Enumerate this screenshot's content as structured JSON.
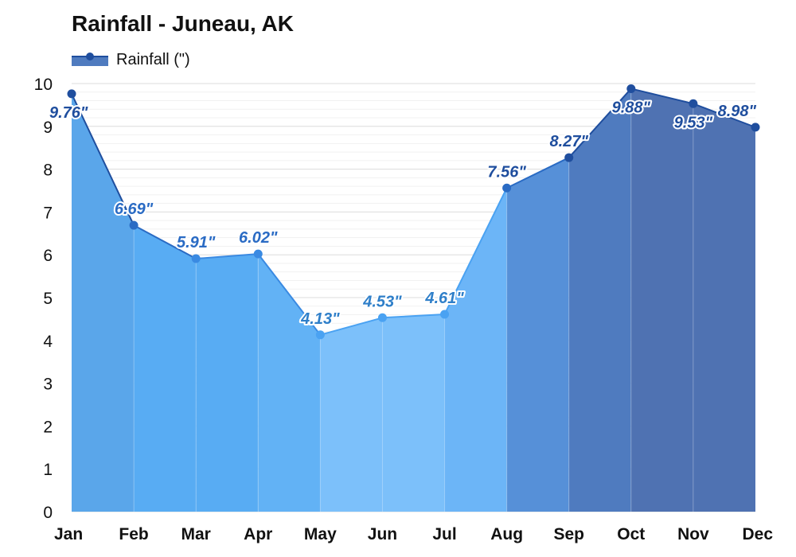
{
  "chart_data": {
    "type": "area",
    "title": "Rainfall - Juneau, AK",
    "legend": {
      "position": "top-left",
      "label": "Rainfall (\")"
    },
    "categories": [
      "Jan",
      "Feb",
      "Mar",
      "Apr",
      "May",
      "Jun",
      "Jul",
      "Aug",
      "Sep",
      "Oct",
      "Nov",
      "Dec"
    ],
    "series": [
      {
        "name": "Rainfall (\")",
        "values": [
          9.76,
          6.69,
          5.91,
          6.02,
          4.13,
          4.53,
          4.61,
          7.56,
          8.27,
          9.88,
          9.53,
          8.98
        ]
      }
    ],
    "data_labels": [
      "9.76\"",
      "6.69\"",
      "5.91\"",
      "6.02\"",
      "4.13\"",
      "4.53\"",
      "4.61\"",
      "7.56\"",
      "8.27\"",
      "9.88\"",
      "9.53\"",
      "8.98\""
    ],
    "y_ticks": [
      "0",
      "1",
      "2",
      "3",
      "4",
      "5",
      "6",
      "7",
      "8",
      "9",
      "10"
    ],
    "ylim": [
      0,
      10
    ],
    "grid": true,
    "segment_fill_colors": [
      "#5aa6ea",
      "#58acf3",
      "#58acf3",
      "#62b2f5",
      "#7cc0fa",
      "#7cc0fa",
      "#6cb5f7",
      "#5690d8",
      "#4f7bbf",
      "#4f72b2",
      "#4f72b2",
      "#4f72b2"
    ],
    "point_colors": [
      "#1f4e9e",
      "#2a6bc4",
      "#3a8ae2",
      "#3a8ae2",
      "#4aa2f2",
      "#4aa2f2",
      "#4aa2f2",
      "#2a6bc4",
      "#1f4e9e",
      "#1f4e9e",
      "#1f4e9e",
      "#1f4e9e"
    ],
    "label_colors": [
      "#1f4e9e",
      "#2a6bc4",
      "#2a6bc4",
      "#2a6bc4",
      "#2f7fc9",
      "#2f7fc9",
      "#2f7fc9",
      "#1f4e9e",
      "#1f4e9e",
      "#1f4e9e",
      "#1f4e9e",
      "#1f4e9e"
    ]
  }
}
